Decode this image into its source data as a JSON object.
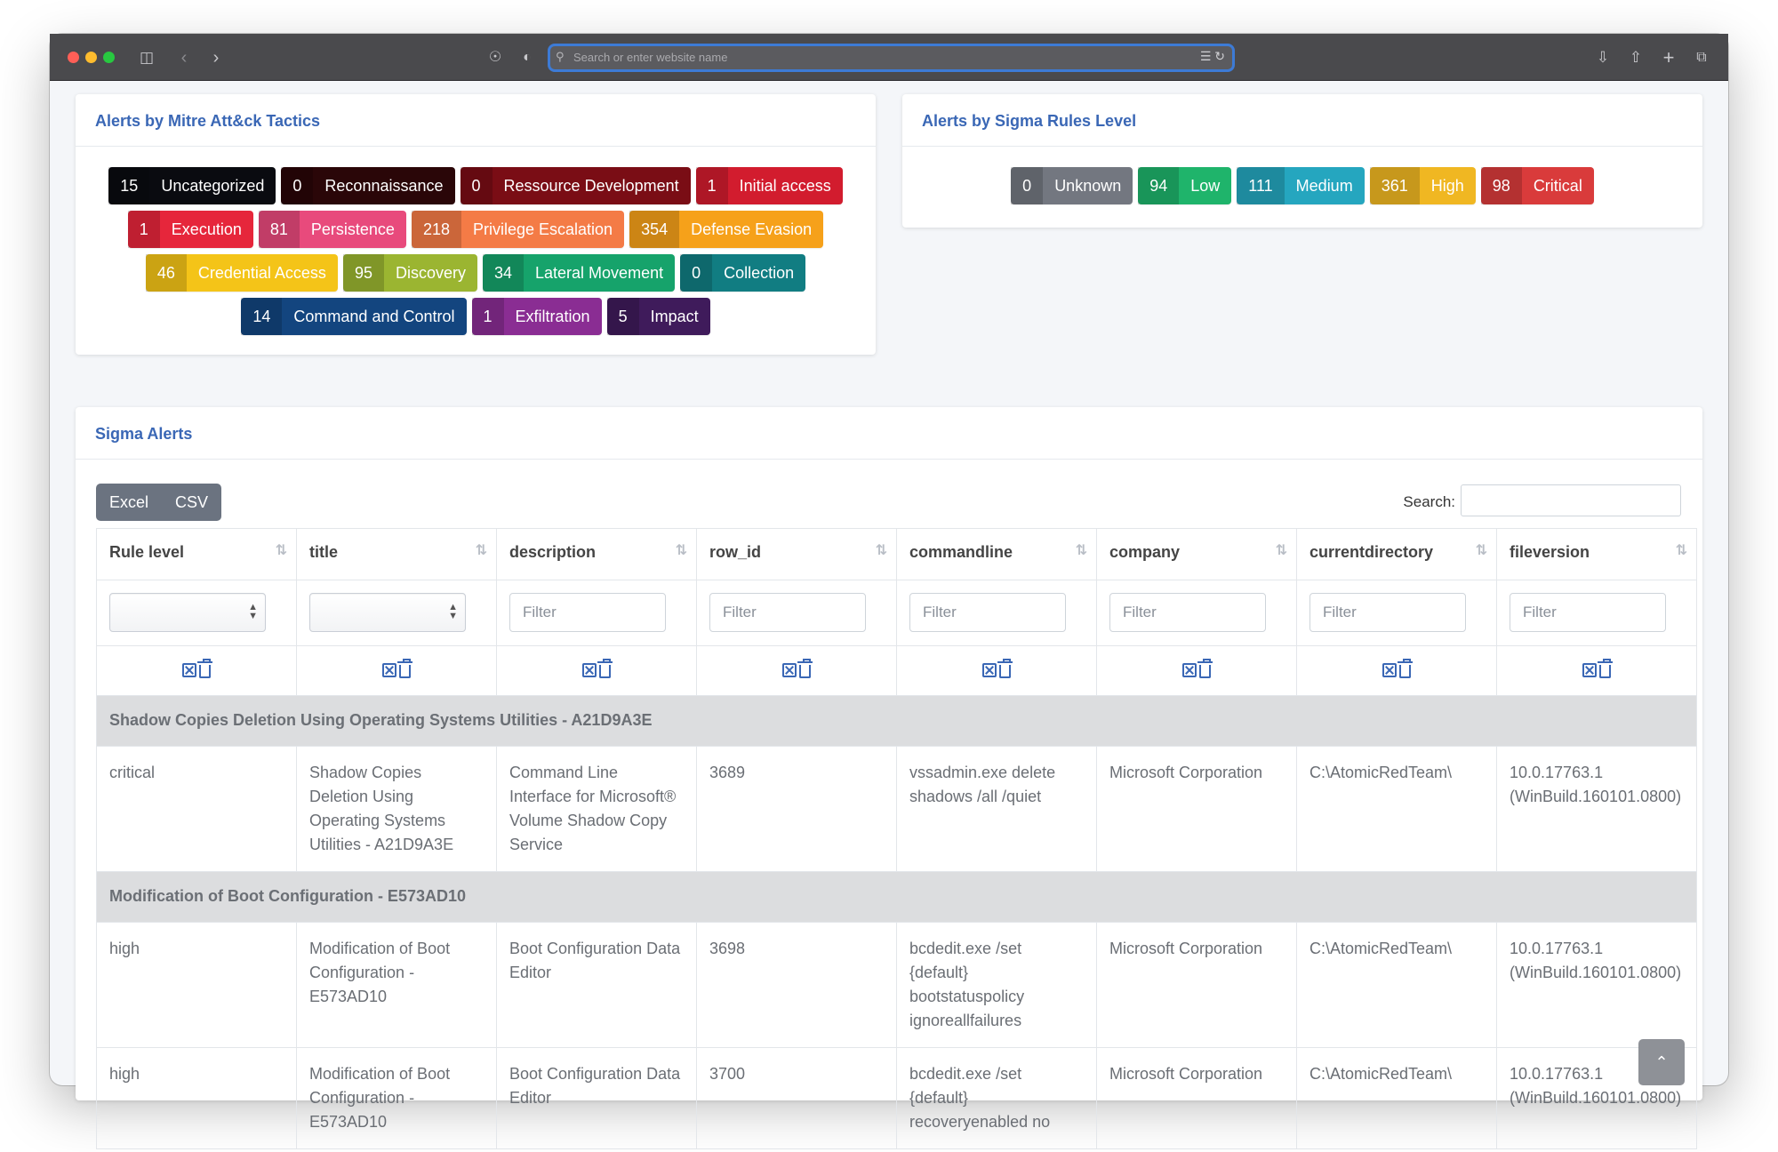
{
  "browser": {
    "url_placeholder": "Search or enter website name"
  },
  "mitre": {
    "title": "Alerts by Mitre Att&ck Tactics",
    "rows": [
      [
        {
          "count": "15",
          "label": "Uncategorized",
          "color": "#0a0b10"
        },
        {
          "count": "0",
          "label": "Reconnaissance",
          "color": "#2a0608"
        },
        {
          "count": "0",
          "label": "Ressource Development",
          "color": "#7a0d15"
        },
        {
          "count": "1",
          "label": "Initial access",
          "color": "#d21c2e"
        }
      ],
      [
        {
          "count": "1",
          "label": "Execution",
          "color": "#e6263b"
        },
        {
          "count": "81",
          "label": "Persistence",
          "color": "#e84a7c"
        },
        {
          "count": "218",
          "label": "Privilege Escalation",
          "color": "#f47b46"
        },
        {
          "count": "354",
          "label": "Defense Evasion",
          "color": "#f6a11a"
        }
      ],
      [
        {
          "count": "46",
          "label": "Credential Access",
          "color": "#f4c418"
        },
        {
          "count": "95",
          "label": "Discovery",
          "color": "#9bb531"
        },
        {
          "count": "34",
          "label": "Lateral Movement",
          "color": "#16a36b"
        },
        {
          "count": "0",
          "label": "Collection",
          "color": "#117d82"
        }
      ],
      [
        {
          "count": "14",
          "label": "Command and Control",
          "color": "#13457f"
        },
        {
          "count": "1",
          "label": "Exfiltration",
          "color": "#8a2d93"
        },
        {
          "count": "5",
          "label": "Impact",
          "color": "#3f1b5b"
        }
      ]
    ]
  },
  "sigma_level": {
    "title": "Alerts by Sigma Rules Level",
    "badges": [
      {
        "count": "0",
        "label": "Unknown",
        "color": "#737780"
      },
      {
        "count": "94",
        "label": "Low",
        "color": "#1fb46b"
      },
      {
        "count": "111",
        "label": "Medium",
        "color": "#25a6bf"
      },
      {
        "count": "361",
        "label": "High",
        "color": "#f0b722"
      },
      {
        "count": "98",
        "label": "Critical",
        "color": "#d93b3b"
      }
    ]
  },
  "alerts": {
    "title": "Sigma Alerts",
    "buttons": [
      "Excel",
      "CSV"
    ],
    "search_label": "Search:",
    "filter_placeholder": "Filter",
    "columns": [
      "Rule level",
      "title",
      "description",
      "row_id",
      "commandline",
      "company",
      "currentdirectory",
      "fileversion"
    ],
    "groups": [
      {
        "name": "Shadow Copies Deletion Using Operating Systems Utilities - A21D9A3E",
        "rows": [
          [
            "critical",
            "Shadow Copies Deletion Using Operating Systems Utilities - A21D9A3E",
            "Command Line Interface for Microsoft® Volume Shadow Copy Service",
            "3689",
            "vssadmin.exe delete shadows /all /quiet",
            "Microsoft Corporation",
            "C:\\AtomicRedTeam\\",
            "10.0.17763.1 (WinBuild.160101.0800)"
          ]
        ]
      },
      {
        "name": "Modification of Boot Configuration - E573AD10",
        "rows": [
          [
            "high",
            "Modification of Boot Configuration - E573AD10",
            "Boot Configuration Data Editor",
            "3698",
            "bcdedit.exe /set {default} bootstatuspolicy ignoreallfailures",
            "Microsoft Corporation",
            "C:\\AtomicRedTeam\\",
            "10.0.17763.1 (WinBuild.160101.0800)"
          ],
          [
            "high",
            "Modification of Boot Configuration - E573AD10",
            "Boot Configuration Data Editor",
            "3700",
            "bcdedit.exe /set {default} recoveryenabled no",
            "Microsoft Corporation",
            "C:\\AtomicRedTeam\\",
            "10.0.17763.1 (WinBuild.160101.0800)"
          ]
        ]
      }
    ]
  }
}
